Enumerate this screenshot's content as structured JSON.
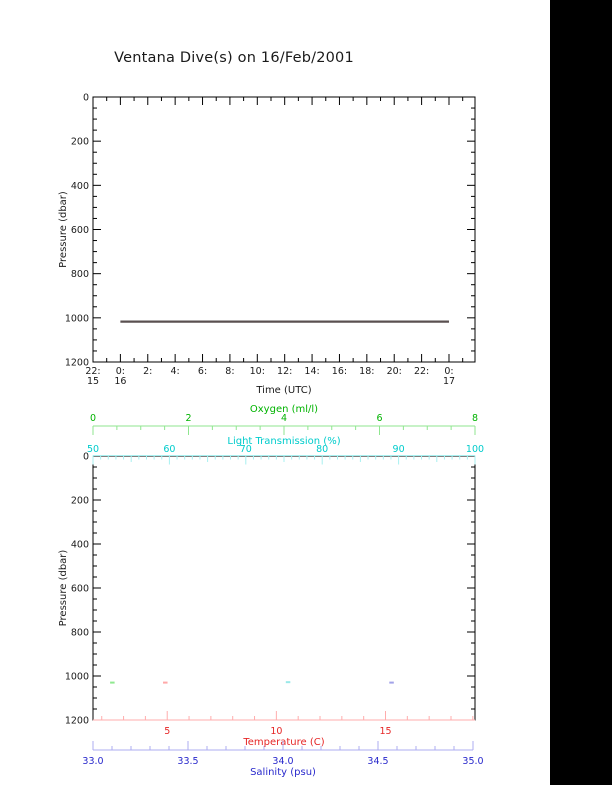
{
  "title": "Ventana Dive(s) on 16/Feb/2001",
  "colors": {
    "frame": "#000000",
    "text": "#1a1a1a",
    "depth_line": "#5a5050",
    "oxygen_text": "#00b300",
    "oxygen_line": "#8fe68f",
    "transmission_text": "#00cccc",
    "transmission_line": "#a8f0f0",
    "temperature_text": "#e62626",
    "temperature_line": "#ffacac",
    "salinity_text": "#2929cc",
    "salinity_line": "#acacf0",
    "dot_oxygen": "#90e890",
    "dot_temperature": "#ffa8a8",
    "dot_transmission": "#9ae8e8",
    "dot_salinity": "#a2a2e8",
    "right_bar": "#000000"
  },
  "chart_data": [
    {
      "type": "line",
      "title": "Ventana Dive(s) on 16/Feb/2001",
      "xlabel": "Time (UTC)",
      "ylabel": "Pressure (dbar)",
      "ylim": [
        0,
        1200
      ],
      "y_major_step": 200,
      "y_minor_step": 50,
      "x_axis": {
        "span_hours": 27.9,
        "minor_step_hours": 1,
        "major_step_hours": 2,
        "tick_labels": [
          {
            "t": 0,
            "hour": "22:",
            "day": "15"
          },
          {
            "t": 2,
            "hour": "0:",
            "day": "16"
          },
          {
            "t": 4,
            "hour": "2:"
          },
          {
            "t": 6,
            "hour": "4:"
          },
          {
            "t": 8,
            "hour": "6:"
          },
          {
            "t": 10,
            "hour": "8:"
          },
          {
            "t": 12,
            "hour": "10:"
          },
          {
            "t": 14,
            "hour": "12:"
          },
          {
            "t": 16,
            "hour": "14:"
          },
          {
            "t": 18,
            "hour": "16:"
          },
          {
            "t": 20,
            "hour": "18:"
          },
          {
            "t": 22,
            "hour": "20:"
          },
          {
            "t": 24,
            "hour": "22:"
          },
          {
            "t": 26,
            "hour": "0:",
            "day": "17"
          }
        ]
      },
      "series": [
        {
          "name": "dive-pressure",
          "t_start": 2,
          "t_end": 26,
          "pressure_dbar": 1017
        }
      ]
    },
    {
      "type": "scatter",
      "ylabel": "Pressure (dbar)",
      "ylim": [
        0,
        1200
      ],
      "y_major_step": 200,
      "y_minor_step": 50,
      "x_axes": {
        "oxygen": {
          "label": "Oxygen (ml/l)",
          "range": [
            0,
            8
          ],
          "majors": [
            0,
            2,
            4,
            6,
            8
          ],
          "major_labels": [
            "0",
            "2",
            "4",
            "6",
            "8"
          ],
          "minor_step": 0.5
        },
        "transmission": {
          "label": "Light Transmission (%)",
          "range": [
            50,
            100
          ],
          "majors": [
            50,
            60,
            70,
            80,
            90,
            100
          ],
          "major_labels": [
            "50",
            "60",
            "70",
            "80",
            "90",
            "100"
          ],
          "minor_step": 1,
          "medium_step": 5
        },
        "temperature": {
          "label": "Temperature (C)",
          "range": [
            1.6,
            19.1
          ],
          "majors": [
            5,
            10,
            15
          ],
          "major_labels": [
            "5",
            "10",
            "15"
          ],
          "minor_step": 1
        },
        "salinity": {
          "label": "Salinity (psu)",
          "range": [
            33.0,
            35.0
          ],
          "majors": [
            33.0,
            33.5,
            34.0,
            34.5,
            35.0
          ],
          "major_labels": [
            "33.0",
            "33.5",
            "34.0",
            "34.5",
            "35.0"
          ],
          "minor_step": 0.1
        }
      },
      "points": [
        {
          "series": "oxygen",
          "value": 0.4,
          "pressure_dbar": 1030
        },
        {
          "series": "temperature",
          "value": 4.9,
          "pressure_dbar": 1030
        },
        {
          "series": "transmission",
          "value": 75.5,
          "pressure_dbar": 1028
        },
        {
          "series": "salinity",
          "value": 34.57,
          "pressure_dbar": 1030
        }
      ]
    }
  ]
}
